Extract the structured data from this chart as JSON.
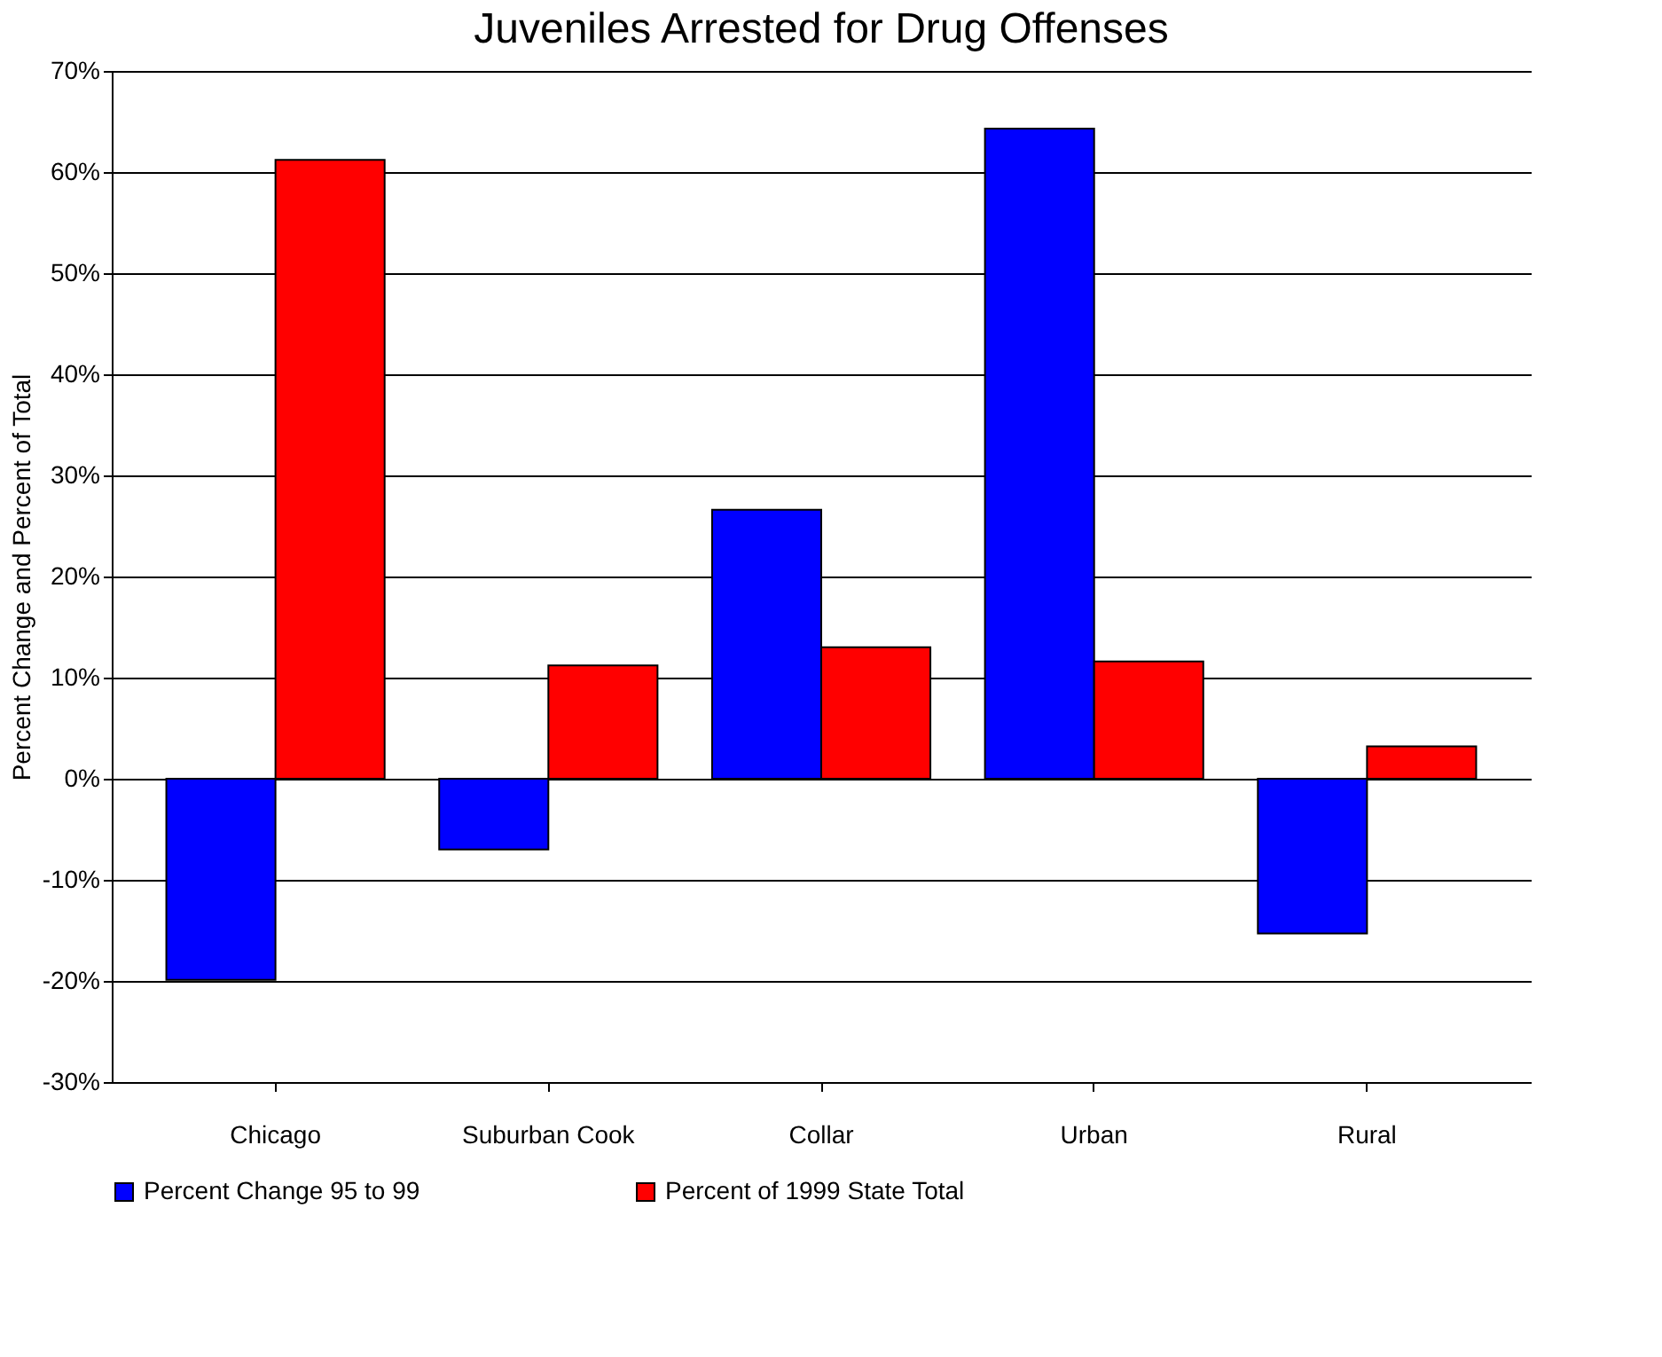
{
  "chart_data": {
    "type": "bar",
    "title": "Juveniles Arrested for Drug Offenses",
    "ylabel": "Percent Change and Percent of Total",
    "categories": [
      "Chicago",
      "Suburban Cook",
      "Collar",
      "Urban",
      "Rural"
    ],
    "series": [
      {
        "name": "Percent Change 95 to 99",
        "color": "#0000ff",
        "values": [
          -19.9,
          -7.0,
          26.6,
          64.3,
          -15.3
        ]
      },
      {
        "name": "Percent of 1999 State Total",
        "color": "#ff0000",
        "values": [
          61.2,
          11.2,
          13.0,
          11.6,
          3.2
        ]
      }
    ],
    "ylim": [
      -30,
      70
    ],
    "yticks": [
      {
        "value": -30,
        "label": "-30%"
      },
      {
        "value": -20,
        "label": "-20%"
      },
      {
        "value": -10,
        "label": "-10%"
      },
      {
        "value": 0,
        "label": "0%"
      },
      {
        "value": 10,
        "label": "10%"
      },
      {
        "value": 20,
        "label": "20%"
      },
      {
        "value": 30,
        "label": "30%"
      },
      {
        "value": 40,
        "label": "40%"
      },
      {
        "value": 50,
        "label": "50%"
      },
      {
        "value": 60,
        "label": "60%"
      },
      {
        "value": 70,
        "label": "70%"
      }
    ],
    "grid": "y",
    "legend": "bottom"
  }
}
